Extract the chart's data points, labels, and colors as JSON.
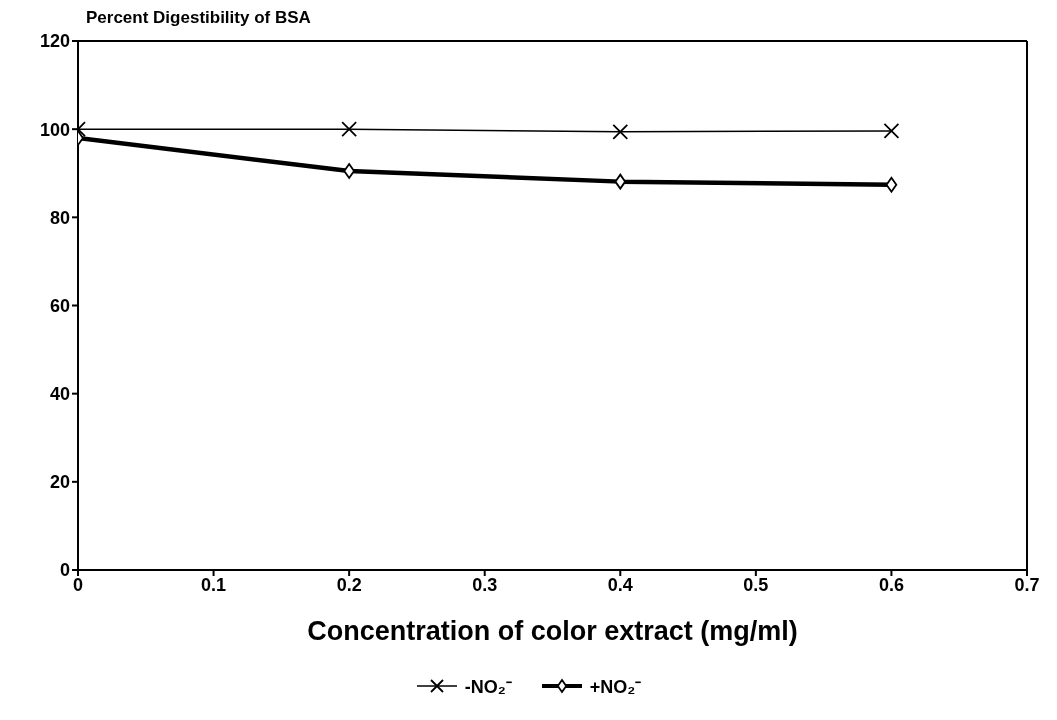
{
  "chart_data": {
    "type": "line",
    "ylabel": "Percent Digestibility of BSA",
    "xlabel": "Concentration of color extract (mg/ml)",
    "x": [
      0,
      0.2,
      0.4,
      0.6
    ],
    "series": [
      {
        "name": "-NO₂⁻",
        "color": "#000000",
        "marker": "cross",
        "values": [
          100,
          100,
          99.4,
          99.6
        ]
      },
      {
        "name": "+NO₂⁻",
        "color": "#000000",
        "marker": "diamond",
        "values": [
          98,
          90.5,
          88.1,
          87.4
        ]
      }
    ],
    "xlim": [
      0,
      0.7
    ],
    "xticks": [
      0,
      0.1,
      0.2,
      0.3,
      0.4,
      0.5,
      0.6,
      0.7
    ],
    "ylim": [
      0,
      120
    ],
    "yticks": [
      0,
      20,
      40,
      60,
      80,
      100,
      120
    ],
    "grid": false,
    "legend": "bottom",
    "line_style": "solid"
  }
}
